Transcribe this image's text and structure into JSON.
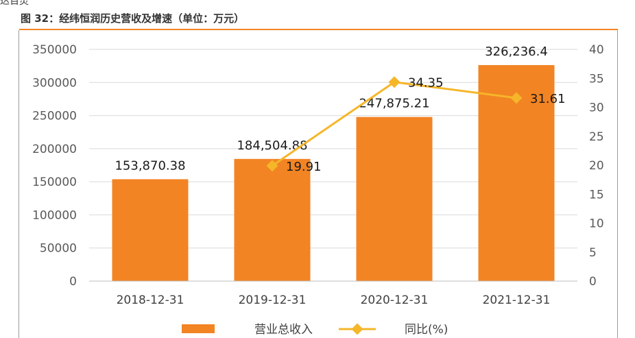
{
  "header": {
    "fragment": "达百灵",
    "figure_title": "图 32：经纬恒润历史营收及增速（单位：万元）"
  },
  "chart_data": {
    "type": "bar",
    "title": "图 32：经纬恒润历史营收及增速（单位：万元）",
    "categories": [
      "2018-12-31",
      "2019-12-31",
      "2020-12-31",
      "2021-12-31"
    ],
    "series": [
      {
        "name": "营业总收入",
        "type": "bar",
        "axis": "left",
        "color": "#F28424",
        "values": [
          153870.38,
          184504.88,
          247875.21,
          326236.4
        ],
        "labels": [
          "153,870.38",
          "184,504.88",
          "247,875.21",
          "326,236.4"
        ]
      },
      {
        "name": "同比(%)",
        "type": "line",
        "axis": "right",
        "color": "#F5B629",
        "values": [
          null,
          19.91,
          34.35,
          31.61
        ],
        "labels": [
          "",
          "19.91",
          "34.35",
          "31.61"
        ]
      }
    ],
    "y_left": {
      "min": 0,
      "max": 350000,
      "ticks": [
        0,
        50000,
        100000,
        150000,
        200000,
        250000,
        300000,
        350000
      ],
      "tick_labels": [
        "0",
        "50000",
        "100000",
        "150000",
        "200000",
        "250000",
        "300000",
        "350000"
      ]
    },
    "y_right": {
      "min": 0,
      "max": 40,
      "ticks": [
        0,
        5,
        10,
        15,
        20,
        25,
        30,
        35,
        40
      ],
      "tick_labels": [
        "0",
        "5",
        "10",
        "15",
        "20",
        "25",
        "30",
        "35",
        "40"
      ]
    },
    "grid": "horizontal",
    "legend_position": "bottom-center"
  }
}
